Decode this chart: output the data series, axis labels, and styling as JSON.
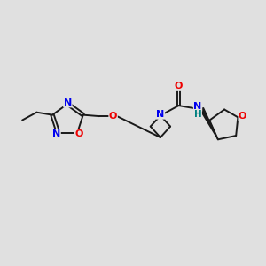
{
  "bg_color": "#e0e0e0",
  "bond_color": "#1a1a1a",
  "bond_width": 1.4,
  "atom_colors": {
    "N": "#0000ee",
    "O": "#ee0000",
    "NH": "#008080",
    "C": "#1a1a1a"
  },
  "fig_bg": "#e0e0e0"
}
